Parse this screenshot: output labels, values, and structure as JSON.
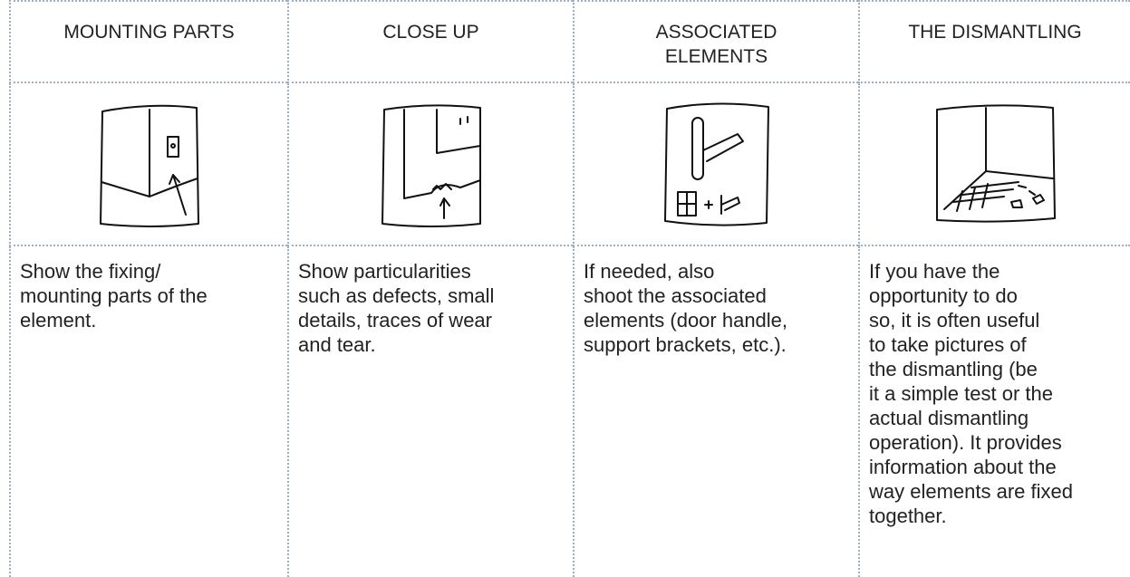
{
  "table": {
    "headers": [
      "MOUNTING PARTS",
      "CLOSE UP",
      "ASSOCIATED ELEMENTS",
      "THE DISMANTLING"
    ],
    "descriptions": [
      [
        "Show the fixing/",
        "mounting parts of the",
        "element."
      ],
      [
        "Show particularities",
        "such as defects, small",
        "details, traces of wear",
        "and tear."
      ],
      [
        "If needed, also",
        "shoot the associated",
        "elements (door handle,",
        "support brackets, etc.)."
      ],
      [
        "If you have the",
        "opportunity to do",
        "so, it is often useful",
        "to take pictures of",
        "the dismantling (be",
        "it a simple test or the",
        "actual dismantling",
        "operation). It provides",
        "information about the",
        "way elements are fixed",
        "together."
      ]
    ]
  }
}
